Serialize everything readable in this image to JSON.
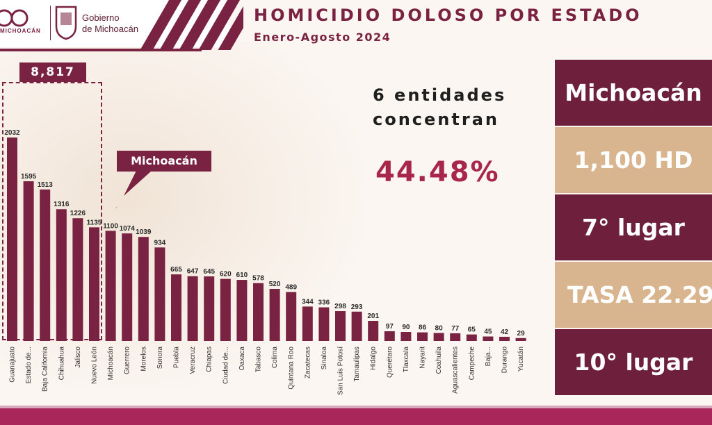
{
  "header": {
    "gov_line1": "Gobierno",
    "gov_line2": "de Michoacán",
    "logo_text": "MICHOACÁN",
    "title": "HOMICIDIO DOLOSO POR ESTADO",
    "subtitle": "Enero-Agosto 2024"
  },
  "highlight": {
    "total_badge": "8,817",
    "callout": "Michoacán",
    "concentran_line1": "6 entidades",
    "concentran_line2": "concentran",
    "percent": "44.48%"
  },
  "panel": {
    "state": "Michoacán",
    "hd": "1,100 HD",
    "rank": "7° lugar",
    "tasa": "TASA 22.29",
    "tasa_rank": "10° lugar"
  },
  "colors": {
    "bar": "#7a2242",
    "accent": "#a8264a",
    "tan": "#d8b58f",
    "dark": "#6e1f3b"
  },
  "chart_data": {
    "type": "bar",
    "title": "HOMICIDIO DOLOSO POR ESTADO",
    "subtitle": "Enero-Agosto 2024",
    "categories": [
      "Guanajuato",
      "Estado de...",
      "Baja California",
      "Chihuahua",
      "Jalisco",
      "Nuevo León",
      "Michoacán",
      "Guerrero",
      "Morelos",
      "Sonora",
      "Puebla",
      "Veracruz",
      "Chiapas",
      "Ciudad de...",
      "Oaxaca",
      "Tabasco",
      "Colima",
      "Quintana Roo",
      "Zacatecas",
      "Sinaloa",
      "San Luis Potosí",
      "Tamaulipas",
      "Hidalgo",
      "Querétaro",
      "Tlaxcala",
      "Nayarit",
      "Coahuila",
      "Aguascalientes",
      "Campeche",
      "Baja...",
      "Durango",
      "Yucatán"
    ],
    "values": [
      2032,
      1595,
      1513,
      1316,
      1226,
      1135,
      1100,
      1074,
      1039,
      934,
      665,
      647,
      645,
      620,
      610,
      578,
      520,
      489,
      344,
      336,
      298,
      293,
      201,
      97,
      90,
      86,
      80,
      77,
      65,
      45,
      42,
      29
    ],
    "ylim": [
      0,
      2100
    ],
    "grid": false,
    "legend": "none"
  }
}
